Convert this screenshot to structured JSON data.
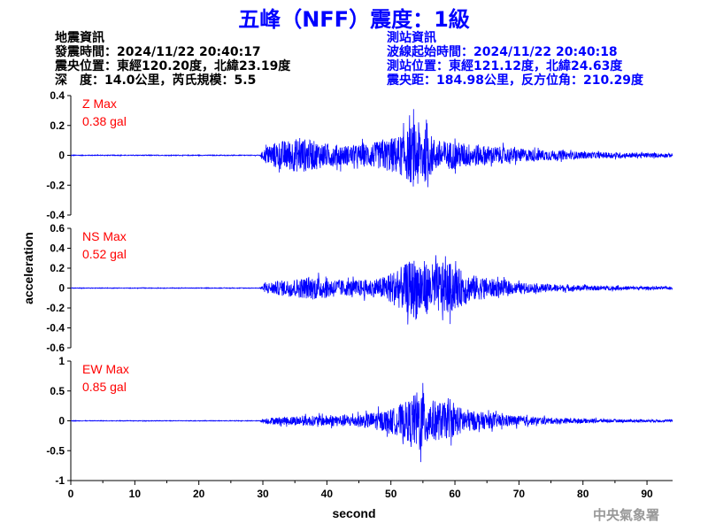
{
  "title": "五峰（NFF）震度：1級",
  "earthquake_info": {
    "heading": "地震資訊",
    "origin_time": "發震時間：2024/11/22 20:40:17",
    "epicenter": "震央位置：東經120.20度，北緯23.19度",
    "depth_magnitude": "深　度：14.0公里，芮氏規模：5.5"
  },
  "station_info": {
    "heading": "測站資訊",
    "arrival_time": "波線起始時間：2024/11/22 20:40:18",
    "location": "測站位置：東經121.12度，北緯24.63度",
    "distance": "震央距：184.98公里，反方位角：210.29度"
  },
  "footer": "中央氣象署",
  "colors": {
    "title": "#0000ff",
    "trace": "#0000ff",
    "max_label": "#ff0000",
    "station_info": "#0000ff"
  },
  "chart_data": {
    "type": "line",
    "xlabel": "second",
    "ylabel": "acceleration",
    "xlim": [
      0,
      94
    ],
    "xticks": [
      0,
      10,
      20,
      30,
      40,
      50,
      60,
      70,
      80,
      90
    ],
    "grid": false,
    "panels": [
      {
        "name": "Z",
        "max_title": "Z Max",
        "max_value": "0.38 gal",
        "ylim": [
          -0.4,
          0.4
        ],
        "yticks": [
          -0.4,
          -0.2,
          0,
          0.2,
          0.4
        ],
        "ytick_labels": [
          "-0.4",
          "-0.2",
          "0",
          "0.2",
          "0.4"
        ],
        "envelope": [
          [
            0,
            0.004
          ],
          [
            29.5,
            0.004
          ],
          [
            30.5,
            0.09
          ],
          [
            32,
            0.14
          ],
          [
            36,
            0.18
          ],
          [
            40,
            0.12
          ],
          [
            44,
            0.1
          ],
          [
            48,
            0.14
          ],
          [
            52,
            0.22
          ],
          [
            54,
            0.36
          ],
          [
            55,
            0.3
          ],
          [
            57,
            0.16
          ],
          [
            60,
            0.14
          ],
          [
            65,
            0.1
          ],
          [
            70,
            0.07
          ],
          [
            80,
            0.035
          ],
          [
            94,
            0.02
          ]
        ]
      },
      {
        "name": "NS",
        "max_title": "NS Max",
        "max_value": "0.52 gal",
        "ylim": [
          -0.6,
          0.6
        ],
        "yticks": [
          -0.6,
          -0.4,
          -0.2,
          0,
          0.2,
          0.4,
          0.6
        ],
        "ytick_labels": [
          "-0.6",
          "-0.4",
          "-0.2",
          "0",
          "0.2",
          "0.4",
          "0.6"
        ],
        "envelope": [
          [
            0,
            0.005
          ],
          [
            29.5,
            0.005
          ],
          [
            30.5,
            0.08
          ],
          [
            33,
            0.12
          ],
          [
            38,
            0.18
          ],
          [
            43,
            0.12
          ],
          [
            48,
            0.14
          ],
          [
            52,
            0.35
          ],
          [
            54,
            0.5
          ],
          [
            56,
            0.38
          ],
          [
            59,
            0.4
          ],
          [
            62,
            0.22
          ],
          [
            66,
            0.14
          ],
          [
            70,
            0.08
          ],
          [
            80,
            0.04
          ],
          [
            94,
            0.02
          ]
        ]
      },
      {
        "name": "EW",
        "max_title": "EW Max",
        "max_value": "0.85 gal",
        "ylim": [
          -1,
          1
        ],
        "yticks": [
          -1,
          -0.5,
          0,
          0.5,
          1
        ],
        "ytick_labels": [
          "-1",
          "-0.5",
          "0",
          "0.5",
          "1"
        ],
        "envelope": [
          [
            0,
            0.008
          ],
          [
            29.5,
            0.008
          ],
          [
            30.5,
            0.08
          ],
          [
            35,
            0.12
          ],
          [
            40,
            0.14
          ],
          [
            45,
            0.16
          ],
          [
            50,
            0.3
          ],
          [
            53,
            0.55
          ],
          [
            54.5,
            0.85
          ],
          [
            56,
            0.55
          ],
          [
            59,
            0.45
          ],
          [
            63,
            0.25
          ],
          [
            68,
            0.15
          ],
          [
            75,
            0.08
          ],
          [
            85,
            0.04
          ],
          [
            94,
            0.03
          ]
        ]
      }
    ]
  }
}
